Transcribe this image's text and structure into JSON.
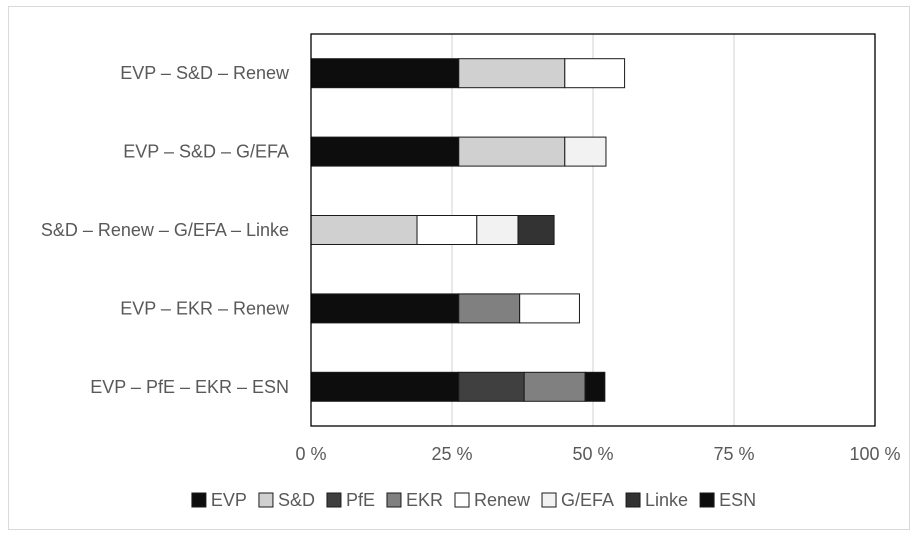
{
  "chart_data": {
    "type": "bar",
    "orientation": "horizontal",
    "stacked": true,
    "categories": [
      "EVP – S&D – Renew",
      "EVP – S&D – G/EFA",
      "S&D – Renew – G/EFA – Linke",
      "EVP – EKR – Renew",
      "EVP – PfE – EKR – ESN"
    ],
    "series": [
      {
        "name": "EVP",
        "color": "#0d0d0d",
        "values": [
          26.2,
          26.2,
          0,
          26.2,
          26.2
        ]
      },
      {
        "name": "S&D",
        "color": "#d0d0d0",
        "values": [
          18.8,
          18.8,
          18.8,
          0,
          0
        ]
      },
      {
        "name": "PfE",
        "color": "#404040",
        "values": [
          0,
          0,
          0,
          0,
          11.6
        ]
      },
      {
        "name": "EKR",
        "color": "#808080",
        "values": [
          0,
          0,
          0,
          10.8,
          10.8
        ]
      },
      {
        "name": "Renew",
        "color": "#ffffff",
        "values": [
          10.6,
          0,
          10.6,
          10.6,
          0
        ]
      },
      {
        "name": "G/EFA",
        "color": "#f2f2f2",
        "values": [
          0,
          7.3,
          7.3,
          0,
          0
        ]
      },
      {
        "name": "Linke",
        "color": "#333333",
        "values": [
          0,
          0,
          6.4,
          0,
          0
        ]
      },
      {
        "name": "ESN",
        "color": "#0d0d0d",
        "values": [
          0,
          0,
          0,
          0,
          3.5
        ]
      }
    ],
    "xlim": [
      0,
      100
    ],
    "xticks": [
      0,
      25,
      50,
      75,
      100
    ],
    "xtick_labels": [
      "0 %",
      "25 %",
      "50 %",
      "75 %",
      "100 %"
    ],
    "grid": "vertical",
    "legend_position": "bottom",
    "title": "",
    "xlabel": "",
    "ylabel": ""
  }
}
